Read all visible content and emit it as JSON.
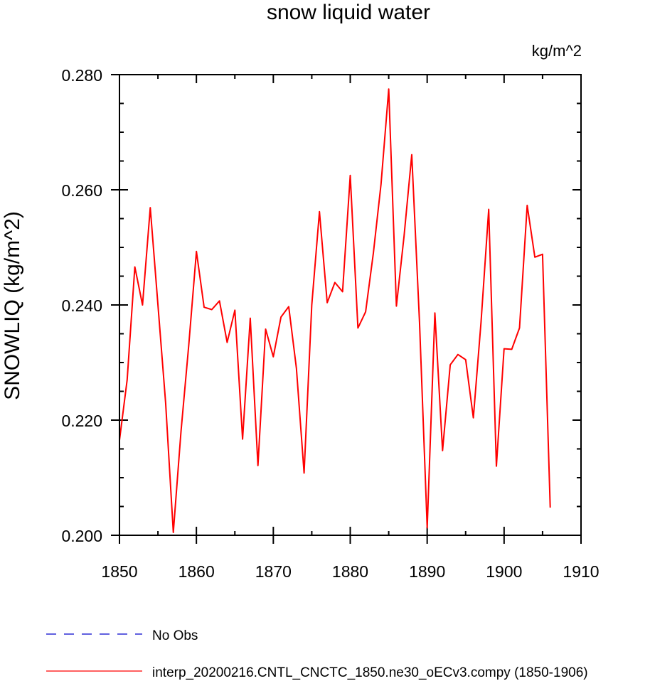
{
  "chart_data": {
    "type": "line",
    "title": "snow liquid water",
    "units_label": "kg/m^2",
    "ylabel": "SNOWLIQ  (kg/m^2)",
    "xlabel": "",
    "xlim": [
      1850,
      1910
    ],
    "ylim": [
      0.2,
      0.28
    ],
    "x_ticks": [
      1850,
      1860,
      1870,
      1880,
      1890,
      1900,
      1910
    ],
    "x_tick_labels": [
      "1850",
      "1860",
      "1870",
      "1880",
      "1890",
      "1900",
      "1910"
    ],
    "y_ticks": [
      0.2,
      0.22,
      0.24,
      0.26,
      0.28
    ],
    "y_tick_labels": [
      "0.200",
      "0.220",
      "0.240",
      "0.260",
      "0.280"
    ],
    "grid": false,
    "legend": [
      {
        "label": "No Obs",
        "color": "#0000cc",
        "style": "dashed"
      },
      {
        "label": "interp_20200216.CNTL_CNCTC_1850.ne30_oECv3.compy (1850-1906)",
        "color": "#ff0000",
        "style": "solid"
      }
    ],
    "series": [
      {
        "name": "interp_20200216.CNTL_CNCTC_1850.ne30_oECv3.compy (1850-1906)",
        "color": "#ff0000",
        "x": [
          1850,
          1851,
          1852,
          1853,
          1854,
          1855,
          1856,
          1857,
          1858,
          1859,
          1860,
          1861,
          1862,
          1863,
          1864,
          1865,
          1866,
          1867,
          1868,
          1869,
          1870,
          1871,
          1872,
          1873,
          1874,
          1875,
          1876,
          1877,
          1878,
          1879,
          1880,
          1881,
          1882,
          1883,
          1884,
          1885,
          1886,
          1887,
          1888,
          1889,
          1890,
          1891,
          1892,
          1893,
          1894,
          1895,
          1896,
          1897,
          1898,
          1899,
          1900,
          1901,
          1902,
          1903,
          1904,
          1905,
          1906
        ],
        "values": [
          0.2165,
          0.227,
          0.2466,
          0.24,
          0.2569,
          0.24,
          0.223,
          0.2005,
          0.218,
          0.233,
          0.2493,
          0.2396,
          0.2392,
          0.2407,
          0.2335,
          0.2391,
          0.2167,
          0.2377,
          0.2121,
          0.2358,
          0.231,
          0.2379,
          0.2397,
          0.229,
          0.2108,
          0.24,
          0.2562,
          0.2404,
          0.2439,
          0.2423,
          0.2625,
          0.236,
          0.2388,
          0.249,
          0.261,
          0.2775,
          0.2398,
          0.252,
          0.2661,
          0.237,
          0.2013,
          0.2386,
          0.2147,
          0.2296,
          0.2314,
          0.2305,
          0.2204,
          0.237,
          0.2566,
          0.212,
          0.2324,
          0.2323,
          0.236,
          0.2573,
          0.2483,
          0.2488,
          0.2048
        ]
      }
    ]
  }
}
